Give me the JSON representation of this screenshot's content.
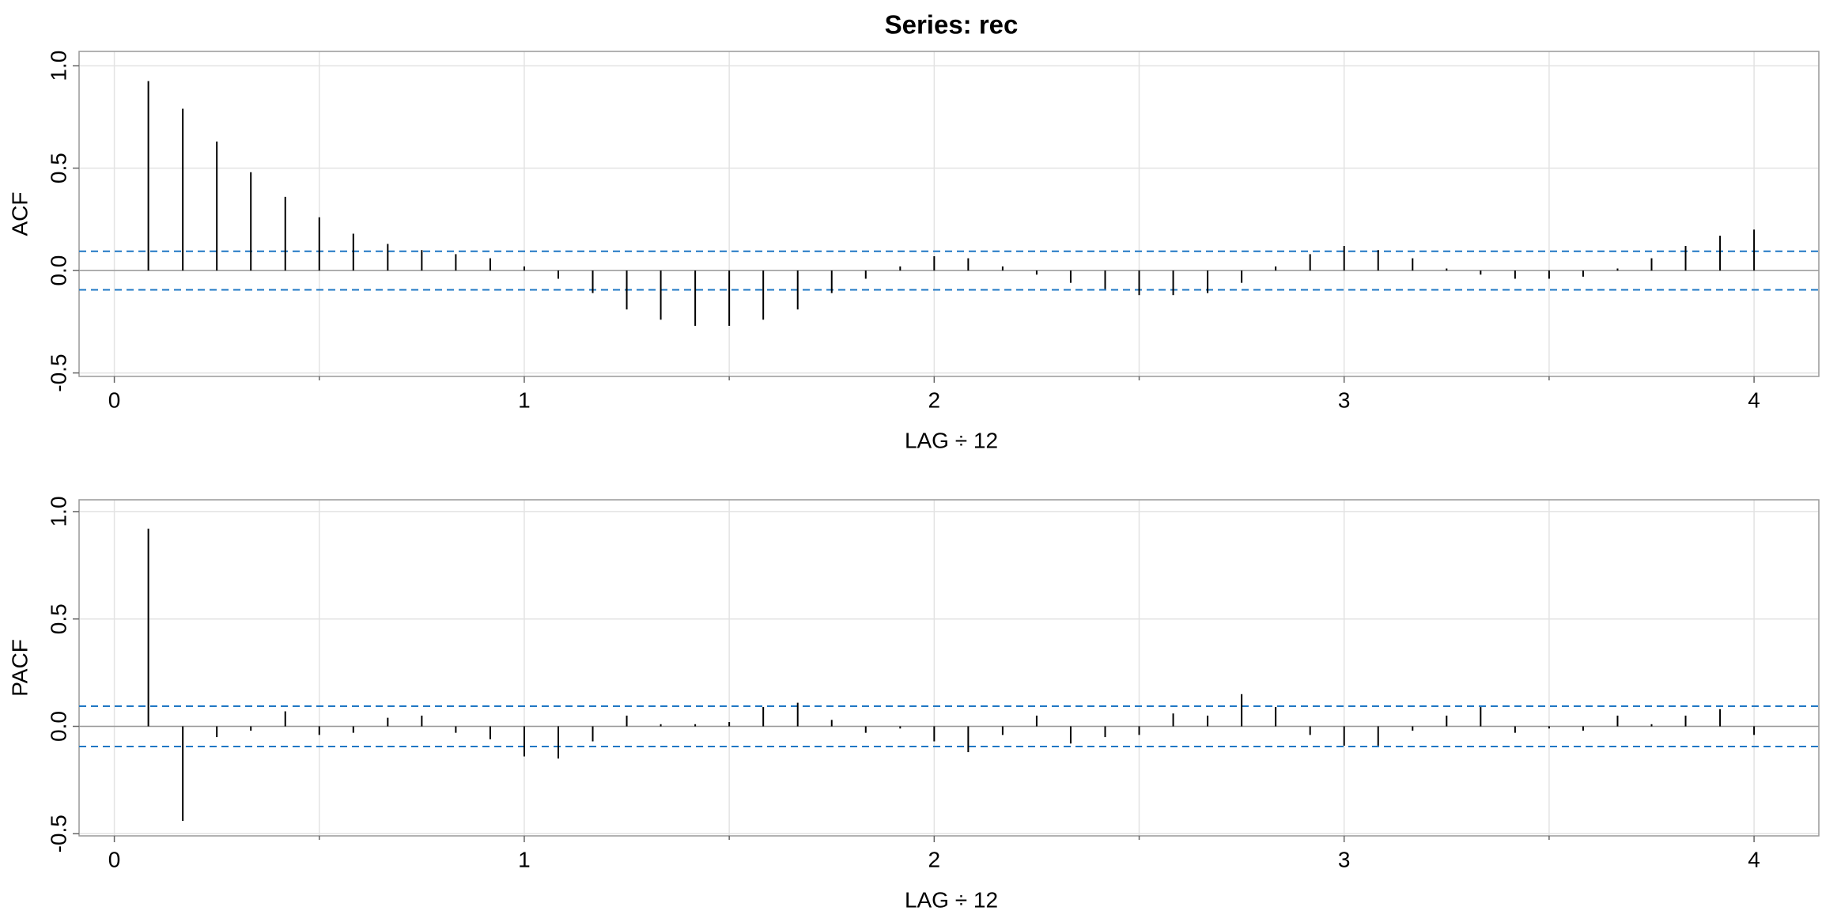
{
  "chart_data": [
    {
      "type": "stem",
      "title": "Series:  rec",
      "ylabel": "ACF",
      "xlabel": "LAG ÷ 12",
      "color": "#000000",
      "conf_color": "#1f77c4",
      "conf_limit": 0.094,
      "grid": true,
      "xlim": [
        -0.086,
        4.158
      ],
      "ylim": [
        -0.517,
        1.07
      ],
      "xticks": [
        0,
        1,
        2,
        3,
        4
      ],
      "xminor": [
        0.5,
        1.5,
        2.5,
        3.5
      ],
      "yticks": [
        {
          "value": -0.5,
          "label": "-0.5"
        },
        {
          "value": 0,
          "label": "0.0"
        },
        {
          "value": 0.5,
          "label": "0.5"
        },
        {
          "value": 1,
          "label": "1.0"
        }
      ],
      "x": [
        0.083,
        0.167,
        0.25,
        0.333,
        0.417,
        0.5,
        0.583,
        0.667,
        0.75,
        0.833,
        0.917,
        1,
        1.083,
        1.167,
        1.25,
        1.333,
        1.417,
        1.5,
        1.583,
        1.667,
        1.75,
        1.833,
        1.917,
        2,
        2.083,
        2.167,
        2.25,
        2.333,
        2.417,
        2.5,
        2.583,
        2.667,
        2.75,
        2.833,
        2.917,
        3,
        3.083,
        3.167,
        3.25,
        3.333,
        3.417,
        3.5,
        3.583,
        3.667,
        3.75,
        3.833,
        3.917,
        4
      ],
      "values": [
        0.925,
        0.79,
        0.63,
        0.48,
        0.36,
        0.26,
        0.18,
        0.13,
        0.1,
        0.08,
        0.06,
        0.02,
        -0.04,
        -0.11,
        -0.19,
        -0.24,
        -0.27,
        -0.27,
        -0.24,
        -0.19,
        -0.11,
        -0.04,
        0.02,
        0.07,
        0.06,
        0.02,
        -0.02,
        -0.06,
        -0.09,
        -0.12,
        -0.12,
        -0.11,
        -0.06,
        0.02,
        0.08,
        0.12,
        0.1,
        0.06,
        0.01,
        -0.02,
        -0.04,
        -0.04,
        -0.03,
        0.01,
        0.06,
        0.12,
        0.17,
        0.2
      ]
    },
    {
      "type": "stem",
      "ylabel": "PACF",
      "xlabel": "LAG ÷ 12",
      "color": "#000000",
      "conf_color": "#1f77c4",
      "conf_limit": 0.094,
      "grid": true,
      "xlim": [
        -0.086,
        4.158
      ],
      "ylim": [
        -0.51,
        1.055
      ],
      "xticks": [
        0,
        1,
        2,
        3,
        4
      ],
      "xminor": [
        0.5,
        1.5,
        2.5,
        3.5
      ],
      "yticks": [
        {
          "value": -0.5,
          "label": "-0.5"
        },
        {
          "value": 0,
          "label": "0.0"
        },
        {
          "value": 0.5,
          "label": "0.5"
        },
        {
          "value": 1,
          "label": "1.0"
        }
      ],
      "x": [
        0.083,
        0.167,
        0.25,
        0.333,
        0.417,
        0.5,
        0.583,
        0.667,
        0.75,
        0.833,
        0.917,
        1,
        1.083,
        1.167,
        1.25,
        1.333,
        1.417,
        1.5,
        1.583,
        1.667,
        1.75,
        1.833,
        1.917,
        2,
        2.083,
        2.167,
        2.25,
        2.333,
        2.417,
        2.5,
        2.583,
        2.667,
        2.75,
        2.833,
        2.917,
        3,
        3.083,
        3.167,
        3.25,
        3.333,
        3.417,
        3.5,
        3.583,
        3.667,
        3.75,
        3.833,
        3.917,
        4
      ],
      "values": [
        0.92,
        -0.44,
        -0.05,
        -0.02,
        0.07,
        -0.04,
        -0.03,
        0.04,
        0.05,
        -0.03,
        -0.06,
        -0.14,
        -0.15,
        -0.07,
        0.05,
        0.01,
        0.01,
        0.02,
        0.09,
        0.11,
        0.03,
        -0.03,
        -0.01,
        -0.07,
        -0.12,
        -0.04,
        0.05,
        -0.08,
        -0.05,
        -0.04,
        0.06,
        0.05,
        0.15,
        0.09,
        -0.04,
        -0.09,
        -0.09,
        -0.02,
        0.05,
        0.09,
        -0.03,
        -0.01,
        -0.02,
        0.05,
        0.01,
        0.05,
        0.08,
        -0.04
      ]
    }
  ]
}
